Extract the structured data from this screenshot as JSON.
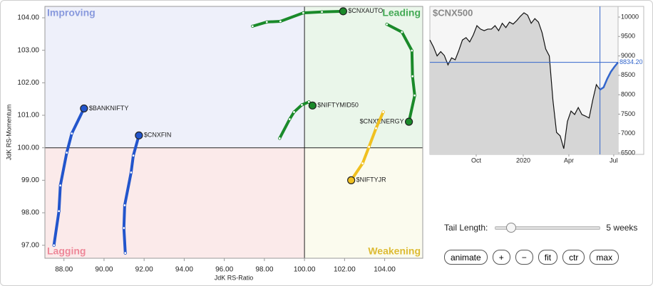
{
  "chart_data": [
    {
      "type": "rrg",
      "x_label": "JdK RS-Ratio",
      "y_label": "JdK RS-Momentum",
      "quadrants": [
        "Improving",
        "Leading",
        "Lagging",
        "Weakening"
      ],
      "quadrant_colors": [
        "#eef0fa",
        "#eaf6ea",
        "#fbeaea",
        "#fbfbee"
      ],
      "quadrant_label_colors": [
        "#8899dd",
        "#44aa55",
        "#ee8899",
        "#ddbb33"
      ],
      "x_center": 100,
      "y_center": 100,
      "xlim": [
        87.05,
        105.9
      ],
      "ylim": [
        96.6,
        104.35
      ],
      "xticks": [
        {
          "value": 88,
          "label": "88.00"
        },
        {
          "value": 90,
          "label": "90.00"
        },
        {
          "value": 92,
          "label": "92.00"
        },
        {
          "value": 94,
          "label": "94.00"
        },
        {
          "value": 96,
          "label": "96.00"
        },
        {
          "value": 98,
          "label": "98.00"
        },
        {
          "value": 100,
          "label": "100.00"
        },
        {
          "value": 102,
          "label": "102.00"
        },
        {
          "value": 104,
          "label": "104.00"
        }
      ],
      "yticks": [
        {
          "value": 97,
          "label": "97.00"
        },
        {
          "value": 98,
          "label": "98.00"
        },
        {
          "value": 99,
          "label": "99.00"
        },
        {
          "value": 100,
          "label": "100.00"
        },
        {
          "value": 101,
          "label": "101.00"
        },
        {
          "value": 102,
          "label": "102.00"
        },
        {
          "value": 103,
          "label": "103.00"
        },
        {
          "value": 104,
          "label": "104.00"
        }
      ],
      "series": [
        {
          "name": "$BANKNIFTY",
          "color": "#2255cc",
          "x": [
            87.5,
            87.75,
            87.82,
            88.14,
            88.39,
            89.0
          ],
          "values": [
            97.0,
            98.05,
            98.84,
            99.85,
            100.44,
            101.21
          ]
        },
        {
          "name": "$CNXFIN",
          "color": "#2255cc",
          "x": [
            91.06,
            90.99,
            91.03,
            91.35,
            91.46,
            91.74
          ],
          "values": [
            96.76,
            97.53,
            98.23,
            99.24,
            99.76,
            100.38
          ]
        },
        {
          "name": "$CNXAUTO",
          "color": "#1a8a2a",
          "x": [
            97.41,
            98.12,
            98.8,
            99.94,
            100.87,
            101.93
          ],
          "values": [
            103.74,
            103.87,
            103.89,
            104.15,
            104.18,
            104.2
          ]
        },
        {
          "name": "$CNXENERGY",
          "color": "#1a8a2a",
          "x": [
            104.11,
            104.86,
            105.36,
            105.39,
            105.5,
            105.21
          ],
          "values": [
            103.8,
            103.56,
            102.99,
            102.2,
            101.61,
            100.8
          ]
        },
        {
          "name": "$NIFTYMID50",
          "color": "#1a8a2a",
          "x": [
            98.76,
            99.26,
            99.48,
            99.87,
            100.22,
            100.4
          ],
          "values": [
            100.29,
            100.88,
            101.1,
            101.32,
            101.41,
            101.3
          ]
        },
        {
          "name": "$NIFTYJR",
          "color": "#f0c020",
          "x": [
            103.93,
            103.57,
            103.22,
            102.9,
            102.33
          ],
          "values": [
            101.1,
            100.6,
            100.03,
            99.52,
            99.0
          ]
        }
      ]
    },
    {
      "type": "line",
      "title": "$CNX500",
      "color": "#111111",
      "tail_color": "#3366cc",
      "tail_weeks": 5,
      "values": [
        9410,
        9230,
        9000,
        9110,
        9010,
        8770,
        8950,
        8900,
        9140,
        9410,
        9470,
        9360,
        9540,
        9780,
        9690,
        9650,
        9690,
        9690,
        9780,
        9650,
        9840,
        9730,
        9870,
        9820,
        9910,
        10020,
        10110,
        10050,
        9840,
        9960,
        9870,
        9600,
        9180,
        9000,
        7860,
        7030,
        6940,
        6610,
        7310,
        7580,
        7490,
        7670,
        7490,
        7450,
        7400,
        7860,
        8260,
        8130,
        8190,
        8410,
        8590,
        8720,
        8834.2
      ],
      "last_label": "8834.20",
      "xlim": [
        0,
        52
      ],
      "ylim": [
        6463,
        10275
      ],
      "xticks": [
        {
          "value": 12.8,
          "label": "Oct"
        },
        {
          "value": 25.8,
          "label": "2020"
        },
        {
          "value": 38.4,
          "label": "Apr"
        },
        {
          "value": 50.8,
          "label": "Jul"
        }
      ],
      "yticks": [
        6500,
        7000,
        7500,
        8000,
        8500,
        9000,
        9500,
        10000
      ]
    }
  ],
  "controls": {
    "tail_label": "Tail Length:",
    "tail_value": "5 weeks",
    "buttons": [
      "animate",
      "+",
      "−",
      "fit",
      "ctr",
      "max"
    ]
  }
}
